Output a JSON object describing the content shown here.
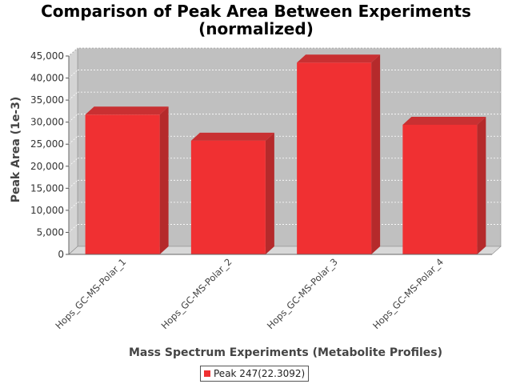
{
  "chart_data": {
    "type": "bar",
    "title_lines": [
      "Comparison of Peak Area Between Experiments",
      "(normalized)"
    ],
    "xlabel": "Mass Spectrum Experiments (Metabolite Profiles)",
    "ylabel": "Peak Area (1e-3)",
    "categories": [
      "Hops_GC-MS-Polar_1",
      "Hops_GC-MS-Polar_2",
      "Hops_GC-MS-Polar_3",
      "Hops_GC-MS-Polar_4"
    ],
    "series": [
      {
        "name": "Peak 247(22.3092)",
        "values": [
          31700,
          25800,
          43500,
          29400
        ],
        "color": "#f03032"
      }
    ],
    "ylim": [
      0,
      45000
    ],
    "yticks": [
      {
        "value": 0,
        "label": "0"
      },
      {
        "value": 5000,
        "label": "5,000"
      },
      {
        "value": 10000,
        "label": "10,000"
      },
      {
        "value": 15000,
        "label": "15,000"
      },
      {
        "value": 20000,
        "label": "20,000"
      },
      {
        "value": 25000,
        "label": "25,000"
      },
      {
        "value": 30000,
        "label": "30,000"
      },
      {
        "value": 35000,
        "label": "35,000"
      },
      {
        "value": 40000,
        "label": "40,000"
      },
      {
        "value": 45000,
        "label": "45,000"
      }
    ],
    "grid": true,
    "style": "3d",
    "legend_position": "bottom",
    "plot_background": "#c0c0c0",
    "floor_color": "#d8d8d8"
  }
}
